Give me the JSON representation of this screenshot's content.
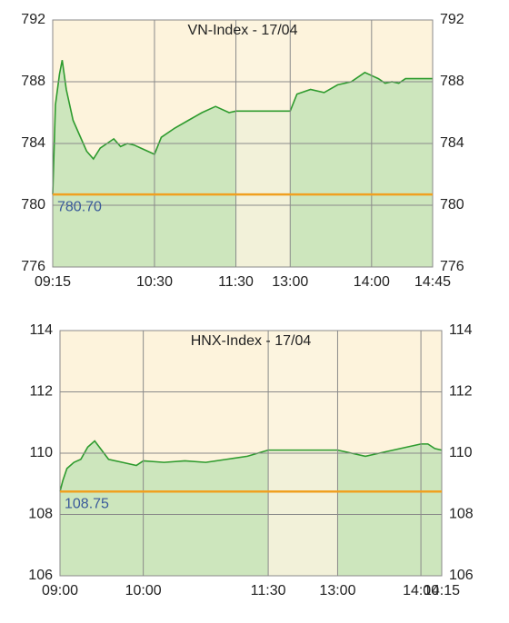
{
  "chart_data": [
    {
      "type": "line",
      "title": "VN-Index - 17/04",
      "x": [
        "09:15",
        "09:17",
        "09:20",
        "09:22",
        "09:25",
        "09:30",
        "09:35",
        "09:40",
        "09:45",
        "09:50",
        "09:55",
        "10:00",
        "10:05",
        "10:10",
        "10:15",
        "10:20",
        "10:25",
        "10:30",
        "10:35",
        "10:45",
        "10:55",
        "11:05",
        "11:15",
        "11:25",
        "11:30",
        "13:00",
        "13:05",
        "13:15",
        "13:25",
        "13:35",
        "13:45",
        "13:55",
        "14:00",
        "14:05",
        "14:10",
        "14:15",
        "14:20",
        "14:25",
        "14:30",
        "14:45"
      ],
      "series": [
        {
          "name": "VN-Index",
          "color": "#2e9b2e",
          "values": [
            780.7,
            786.5,
            788.5,
            789.4,
            787.5,
            785.5,
            784.5,
            783.5,
            783.0,
            783.7,
            784.0,
            784.3,
            783.8,
            784.0,
            783.9,
            783.7,
            783.5,
            783.3,
            784.4,
            785.0,
            785.5,
            786.0,
            786.4,
            786.0,
            786.1,
            786.1,
            787.2,
            787.5,
            787.3,
            787.8,
            788.0,
            788.6,
            788.4,
            788.2,
            787.9,
            788.0,
            787.9,
            788.2,
            788.2,
            788.2
          ]
        }
      ],
      "reference": 780.7,
      "reference_label": "780.70",
      "reference_color": "#f0a020",
      "break": [
        "11:30",
        "13:00"
      ],
      "xticks": [
        "09:15",
        "10:30",
        "11:30",
        "13:00",
        "14:00",
        "14:45"
      ],
      "ylim": [
        776,
        792
      ],
      "yticks": [
        776,
        780,
        784,
        788,
        792
      ],
      "grid": true
    },
    {
      "type": "line",
      "title": "HNX-Index - 17/04",
      "x": [
        "09:00",
        "09:02",
        "09:05",
        "09:10",
        "09:15",
        "09:20",
        "09:25",
        "09:30",
        "09:35",
        "09:45",
        "09:55",
        "10:00",
        "10:15",
        "10:30",
        "10:45",
        "11:00",
        "11:15",
        "11:30",
        "13:00",
        "13:10",
        "13:20",
        "13:30",
        "13:40",
        "13:50",
        "14:00",
        "14:05",
        "14:10",
        "14:15"
      ],
      "series": [
        {
          "name": "HNX-Index",
          "color": "#2e9b2e",
          "values": [
            108.75,
            109.1,
            109.5,
            109.7,
            109.8,
            110.2,
            110.4,
            110.1,
            109.8,
            109.7,
            109.6,
            109.75,
            109.7,
            109.75,
            109.7,
            109.8,
            109.9,
            110.1,
            110.1,
            110.0,
            109.9,
            110.0,
            110.1,
            110.2,
            110.3,
            110.3,
            110.15,
            110.1
          ]
        }
      ],
      "reference": 108.75,
      "reference_label": "108.75",
      "reference_color": "#f0a020",
      "break": [
        "11:30",
        "13:00"
      ],
      "xticks": [
        "09:00",
        "10:00",
        "11:30",
        "13:00",
        "14:00",
        "14:15"
      ],
      "ylim": [
        106,
        114
      ],
      "yticks": [
        106,
        108,
        110,
        112,
        114
      ],
      "grid": true
    }
  ]
}
